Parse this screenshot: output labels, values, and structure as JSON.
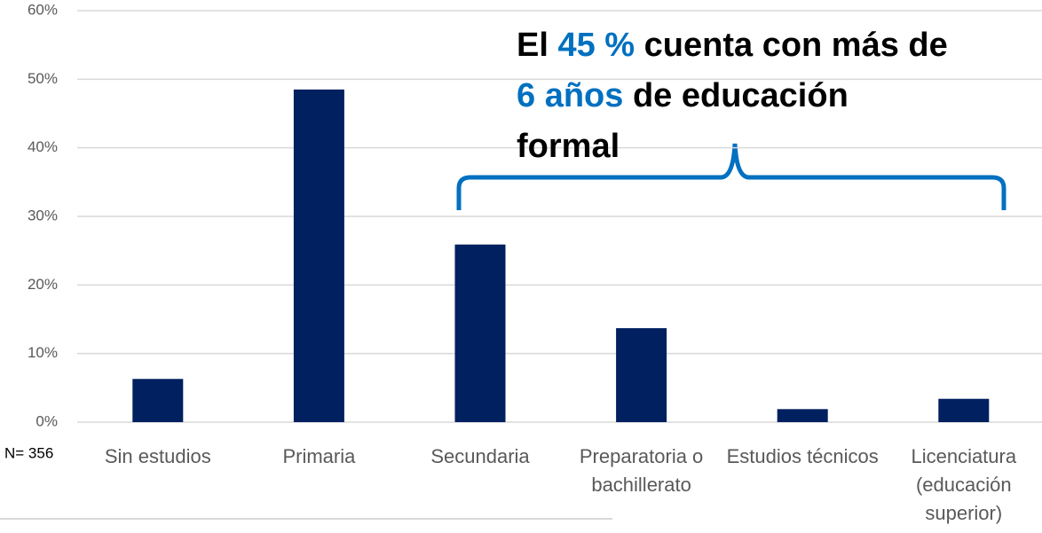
{
  "chart_data": {
    "type": "bar",
    "categories": [
      "Sin estudios",
      "Primaria",
      "Secundaria",
      "Preparatoria o bachillerato",
      "Estudios técnicos",
      "Licenciatura (educación superior)"
    ],
    "values": [
      6.3,
      48.5,
      25.9,
      13.7,
      1.9,
      3.4
    ],
    "color": "#002060",
    "ylim": [
      0,
      60
    ],
    "yticks": [
      {
        "value": 0,
        "label": "0%"
      },
      {
        "value": 10,
        "label": "10%"
      },
      {
        "value": 20,
        "label": "20%"
      },
      {
        "value": 30,
        "label": "30%"
      },
      {
        "value": 40,
        "label": "40%"
      },
      {
        "value": 50,
        "label": "50%"
      },
      {
        "value": 60,
        "label": "60%"
      }
    ],
    "grid": true,
    "note": "N= 356",
    "annotation": {
      "highlight_color": "#0070c0",
      "lines": [
        [
          {
            "text": "El ",
            "highlight": false
          },
          {
            "text": "45 %",
            "highlight": true
          },
          {
            "text": " cuenta con más de",
            "highlight": false
          }
        ],
        [
          {
            "text": "6 años",
            "highlight": true
          },
          {
            "text": " de educación",
            "highlight": false
          }
        ],
        [
          {
            "text": "formal",
            "highlight": false
          }
        ]
      ]
    }
  }
}
